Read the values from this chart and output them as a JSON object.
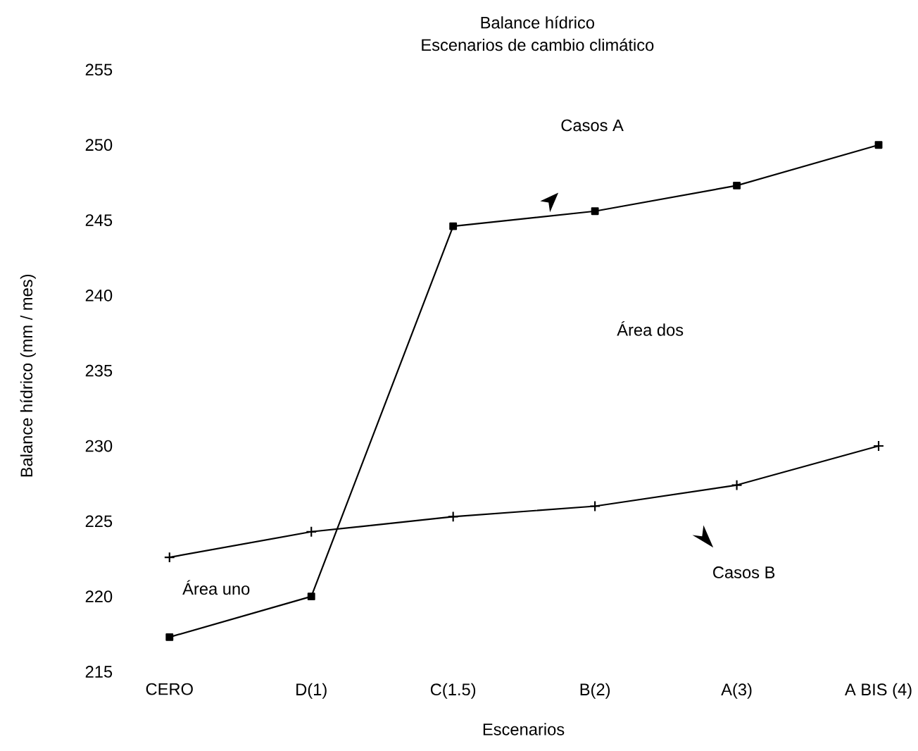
{
  "chart_data": {
    "type": "line",
    "title": "Balance hídrico",
    "subtitle": "Escenarios de cambio climático",
    "xlabel": "Escenarios",
    "ylabel": "Balance hídrico (mm / mes)",
    "categories": [
      "CERO",
      "D(1)",
      "C(1.5)",
      "B(2)",
      "A(3)",
      "A BIS (4)"
    ],
    "series": [
      {
        "color": "#000000",
        "marker": "square",
        "values": [
          217.3,
          220.0,
          244.6,
          245.6,
          247.3,
          250.0
        ]
      },
      {
        "color": "#000000",
        "marker": "cross",
        "values": [
          222.6,
          224.3,
          225.3,
          226.0,
          227.4,
          230.0
        ]
      }
    ],
    "ylim": [
      215,
      255
    ],
    "yticks": [
      215,
      220,
      225,
      230,
      235,
      240,
      245,
      250,
      255
    ],
    "annotations": [
      "Casos A",
      "Área dos",
      "Área uno",
      "Casos B"
    ]
  }
}
